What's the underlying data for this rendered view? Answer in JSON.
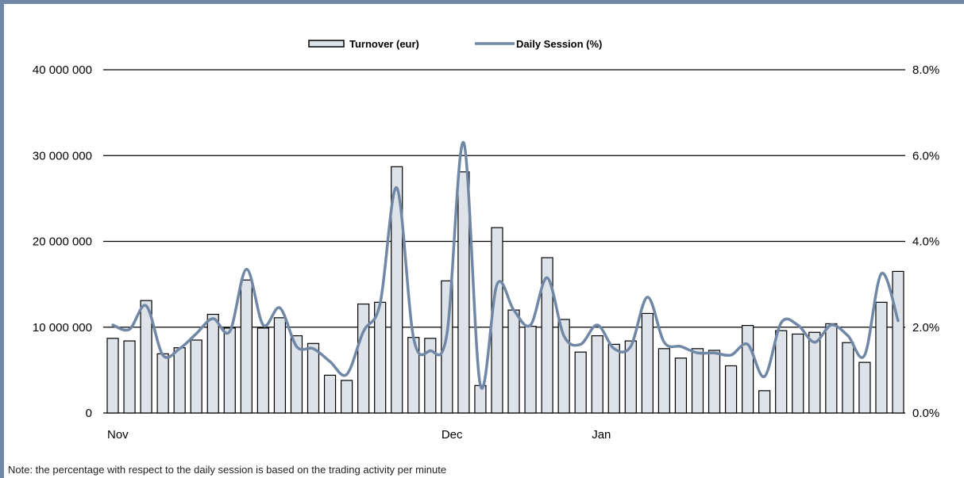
{
  "colors": {
    "frame": "#6f88a8",
    "bar_fill": "#dde3e9",
    "bar_stroke": "#000000",
    "line": "#7088a6",
    "gridline": "#000000"
  },
  "note": "Note: the percentage with respect to the daily session is based on the trading activity per minute",
  "chart_data": {
    "type": "bar+line",
    "legend_position": "top-center",
    "grid": true,
    "legend": {
      "bar_label": "Turnover (eur)",
      "line_label": "Daily Session (%)"
    },
    "y_left": {
      "ylim": [
        0,
        40000000
      ],
      "ticks": [
        "0",
        "10 000 000",
        "20 000 000",
        "30 000 000",
        "40 000 000"
      ]
    },
    "y_right": {
      "ylim": [
        0,
        8
      ],
      "ticks": [
        "0.0%",
        "2.0%",
        "4.0%",
        "6.0%",
        "8.0%"
      ]
    },
    "x_ticks": [
      {
        "label": "Nov",
        "index": 0
      },
      {
        "label": "Dec",
        "index": 20
      },
      {
        "label": "Jan",
        "index": 29
      }
    ],
    "series": [
      {
        "name": "Turnover (eur)",
        "type": "bar",
        "values": [
          8700000,
          8400000,
          13100000,
          6900000,
          7600000,
          8500000,
          11500000,
          9900000,
          15500000,
          9900000,
          11100000,
          9000000,
          8100000,
          4400000,
          3800000,
          12700000,
          12900000,
          28700000,
          8800000,
          8700000,
          15400000,
          28100000,
          3200000,
          21600000,
          12000000,
          10100000,
          18100000,
          10900000,
          7100000,
          9000000,
          8000000,
          8400000,
          11600000,
          7500000,
          6400000,
          7500000,
          7300000,
          5500000,
          10200000,
          2600000,
          9600000,
          9200000,
          9400000,
          10400000,
          8200000,
          5900000,
          12900000,
          16500000
        ]
      },
      {
        "name": "Daily Session (%)",
        "type": "line",
        "values": [
          2.05,
          1.95,
          2.5,
          1.35,
          1.5,
          1.85,
          2.2,
          1.9,
          3.35,
          2.05,
          2.45,
          1.55,
          1.5,
          1.2,
          0.9,
          1.9,
          2.55,
          5.25,
          1.75,
          1.45,
          1.85,
          6.3,
          0.65,
          3.0,
          2.4,
          2.05,
          3.15,
          1.8,
          1.6,
          2.05,
          1.5,
          1.55,
          2.7,
          1.65,
          1.55,
          1.4,
          1.4,
          1.35,
          1.6,
          0.85,
          2.1,
          2.05,
          1.65,
          2.05,
          1.8,
          1.35,
          3.25,
          2.15
        ]
      }
    ]
  }
}
